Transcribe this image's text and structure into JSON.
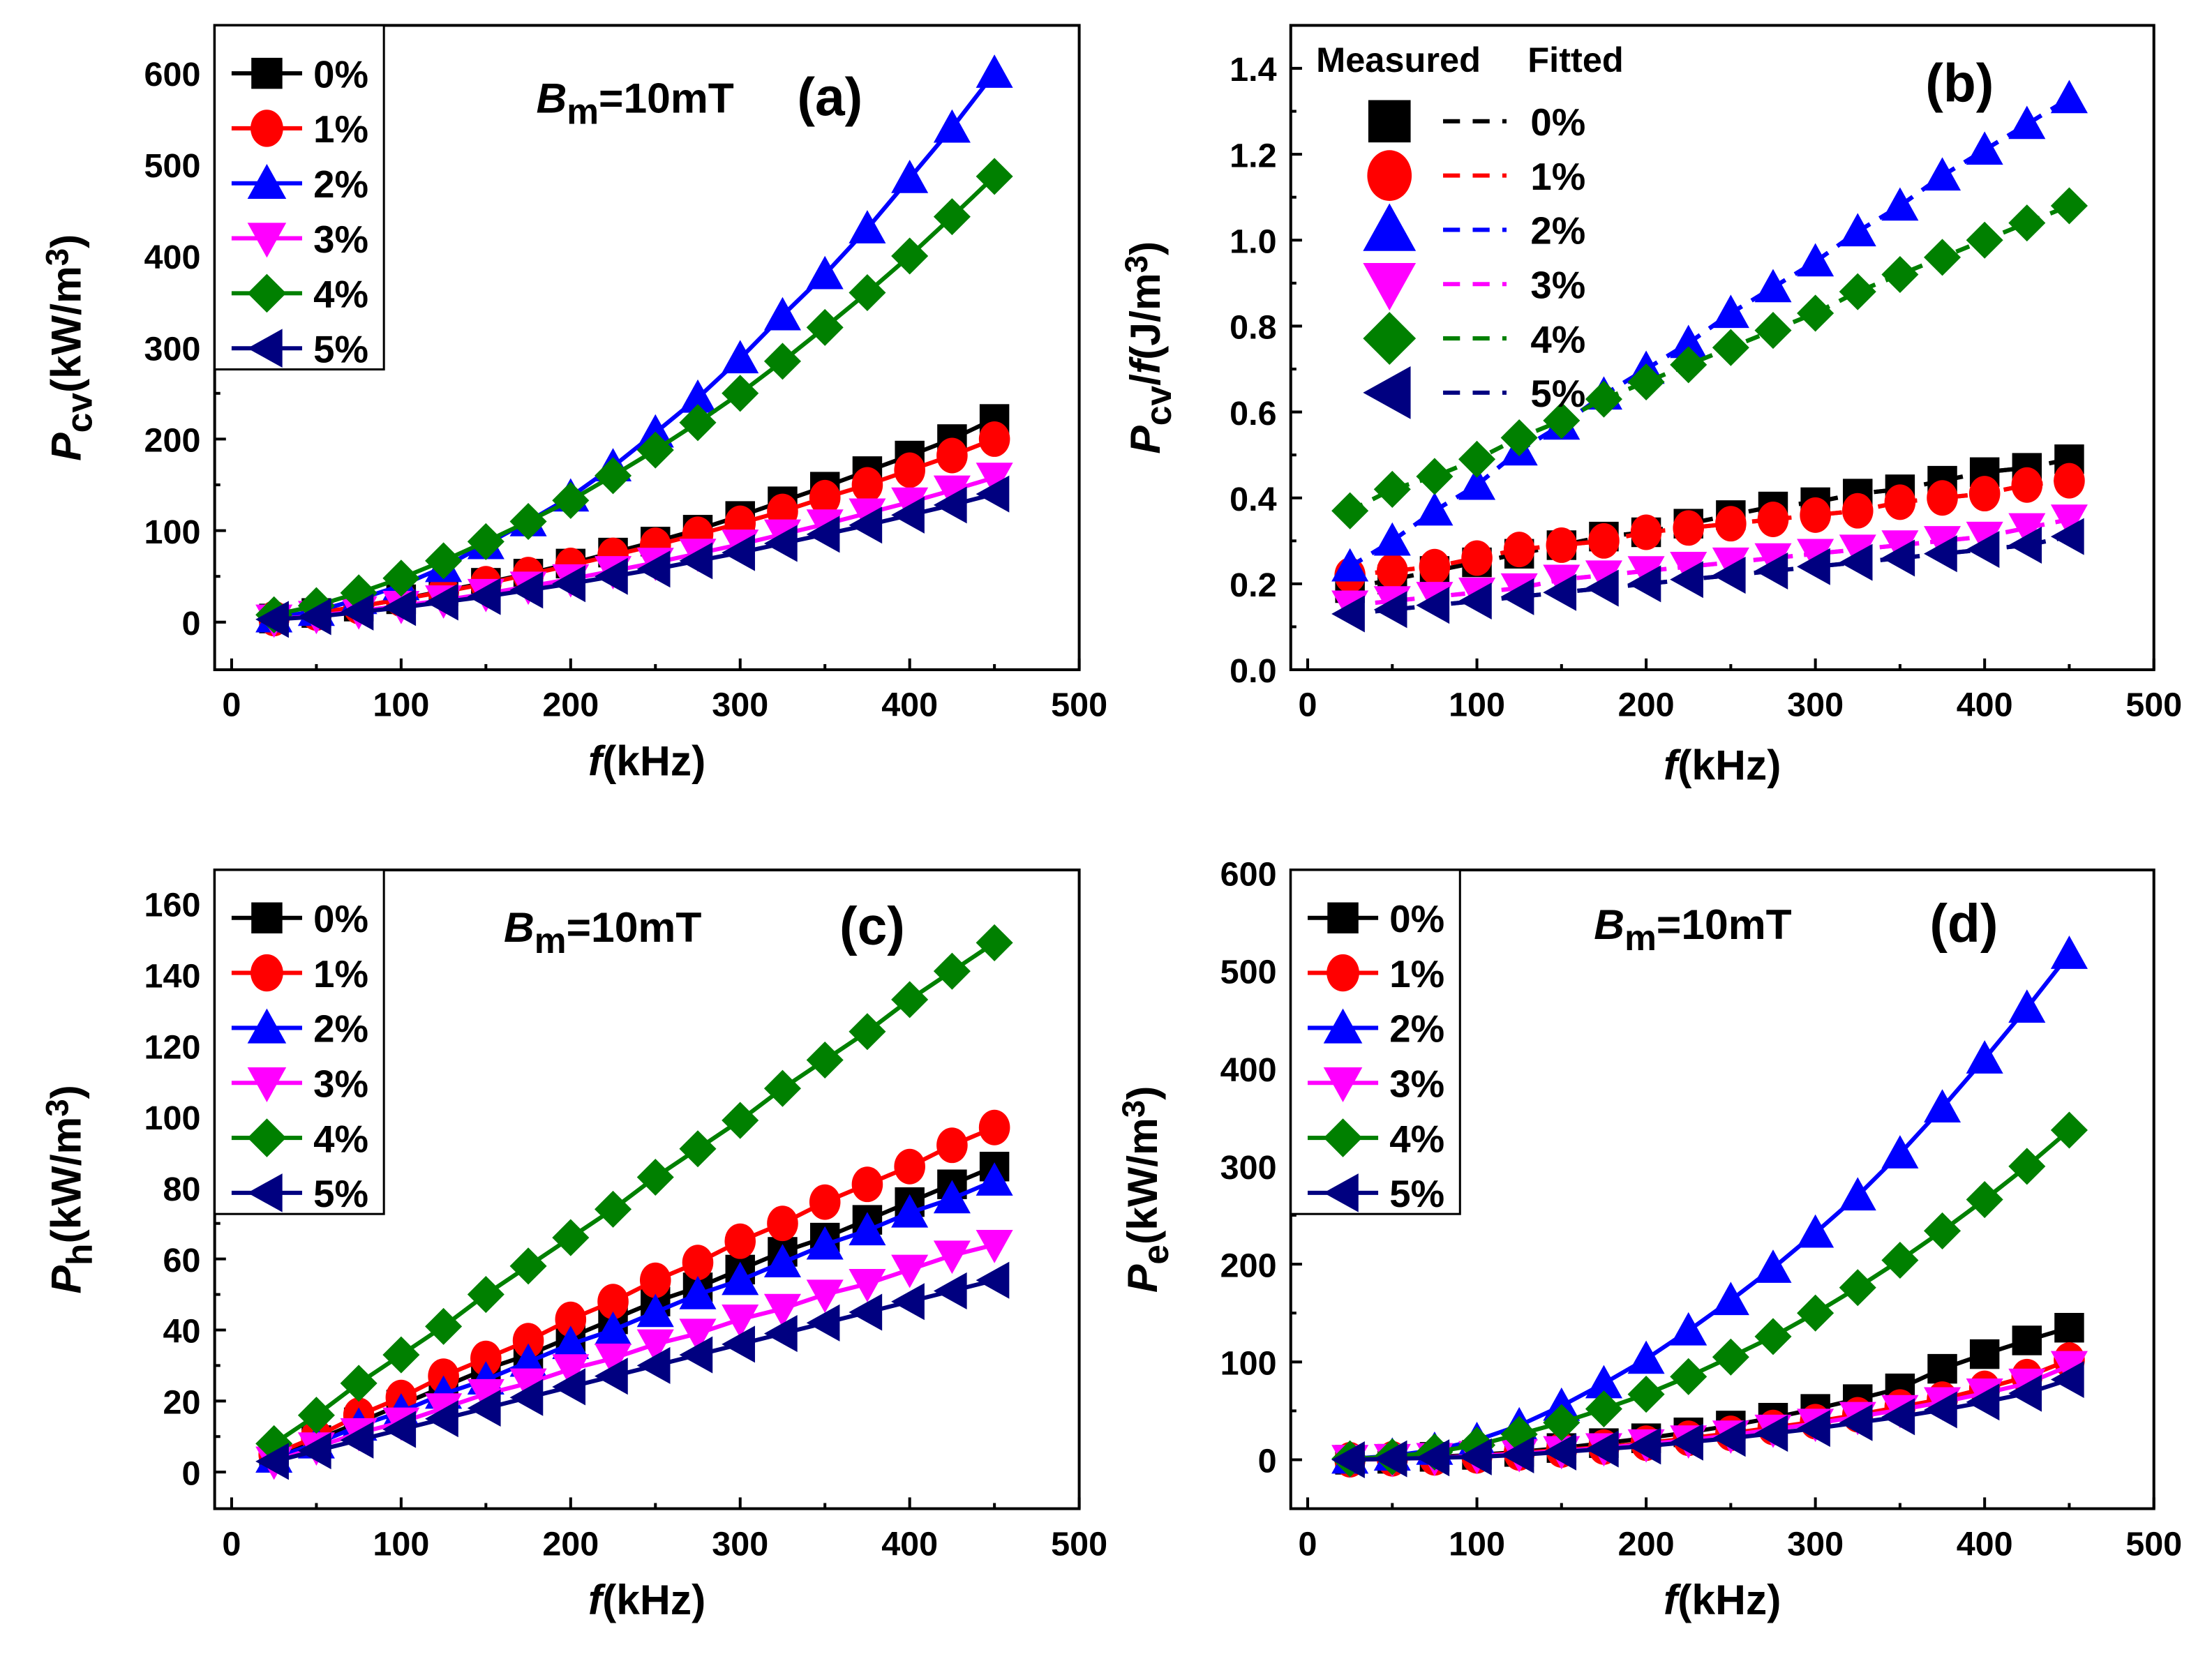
{
  "colors": {
    "0%": "#000000",
    "1%": "#ff0000",
    "2%": "#0000ff",
    "3%": "#ff00ff",
    "4%": "#008000",
    "5%": "#000080"
  },
  "chart_data": [
    {
      "id": "a",
      "type": "line",
      "panel_label": "(a)",
      "annotation": [
        {
          "t": "B",
          "s": "i"
        },
        {
          "t": "m",
          "s": "sub"
        },
        {
          "t": "=10mT",
          "s": "n"
        }
      ],
      "xlabel": [
        {
          "t": "f",
          "s": "i"
        },
        {
          "t": "(kHz)",
          "s": "n"
        }
      ],
      "ylabel": [
        {
          "t": "P",
          "s": "i"
        },
        {
          "t": "cv",
          "s": "sub"
        },
        {
          "t": "(kW/m",
          "s": "n"
        },
        {
          "t": "3",
          "s": "sup"
        },
        {
          "t": ")",
          "s": "n"
        }
      ],
      "xlim": [
        -10,
        500
      ],
      "ylim": [
        -52,
        652
      ],
      "xticks": [
        0,
        100,
        200,
        300,
        400,
        500
      ],
      "yticks": [
        0,
        100,
        200,
        300,
        400,
        500,
        600
      ],
      "ydecimals": 0,
      "legend": {
        "placement": "top-left",
        "style": "boxed"
      },
      "x": [
        25,
        50,
        75,
        100,
        125,
        150,
        175,
        200,
        225,
        250,
        275,
        300,
        325,
        350,
        375,
        400,
        425,
        450
      ],
      "series": [
        {
          "name": "0%",
          "marker": "square",
          "values": [
            4,
            10,
            17,
            25,
            34,
            43,
            53,
            64,
            76,
            88,
            101,
            116,
            132,
            148,
            165,
            182,
            200,
            222
          ]
        },
        {
          "name": "1%",
          "marker": "circle",
          "values": [
            4,
            10,
            17,
            25,
            33,
            42,
            52,
            62,
            73,
            84,
            96,
            108,
            121,
            136,
            150,
            166,
            182,
            200
          ]
        },
        {
          "name": "2%",
          "marker": "triangle-up",
          "values": [
            5,
            12,
            25,
            40,
            60,
            85,
            110,
            137,
            170,
            207,
            245,
            288,
            335,
            380,
            430,
            485,
            540,
            600
          ]
        },
        {
          "name": "3%",
          "marker": "triangle-down",
          "values": [
            3,
            7,
            12,
            18,
            24,
            31,
            39,
            47,
            56,
            65,
            75,
            85,
            96,
            107,
            119,
            131,
            144,
            158
          ]
        },
        {
          "name": "4%",
          "marker": "diamond",
          "values": [
            8,
            18,
            32,
            48,
            67,
            88,
            110,
            133,
            160,
            188,
            218,
            250,
            285,
            322,
            360,
            400,
            443,
            487
          ]
        },
        {
          "name": "5%",
          "marker": "triangle-left",
          "values": [
            3,
            6,
            11,
            16,
            22,
            28,
            35,
            42,
            50,
            58,
            67,
            76,
            86,
            96,
            106,
            117,
            128,
            140
          ]
        }
      ]
    },
    {
      "id": "b",
      "type": "scatter",
      "panel_label": "(b)",
      "annotation": [],
      "legend_headers": {
        "measured": "Measured",
        "fitted": "Fitted"
      },
      "xlabel": [
        {
          "t": "f",
          "s": "i"
        },
        {
          "t": "(kHz)",
          "s": "n"
        }
      ],
      "ylabel": [
        {
          "t": "P",
          "s": "i"
        },
        {
          "t": "cv",
          "s": "sub"
        },
        {
          "t": "/",
          "s": "n"
        },
        {
          "t": "f",
          "s": "i"
        },
        {
          "t": "(J/m",
          "s": "n"
        },
        {
          "t": "3",
          "s": "sup"
        },
        {
          "t": ")",
          "s": "n"
        }
      ],
      "xlim": [
        -10,
        500
      ],
      "ylim": [
        0,
        1.5
      ],
      "xticks": [
        0,
        100,
        200,
        300,
        400,
        500
      ],
      "yticks": [
        0,
        0.2,
        0.4,
        0.6,
        0.8,
        1.0,
        1.2,
        1.4
      ],
      "ydecimals": 1,
      "legend": {
        "placement": "top-left",
        "style": "measured-fitted"
      },
      "x": [
        25,
        50,
        75,
        100,
        125,
        150,
        175,
        200,
        225,
        250,
        275,
        300,
        325,
        350,
        375,
        400,
        425,
        450
      ],
      "series": [
        {
          "name": "0%",
          "marker": "square",
          "values": [
            0.19,
            0.21,
            0.23,
            0.25,
            0.27,
            0.29,
            0.31,
            0.32,
            0.34,
            0.36,
            0.38,
            0.39,
            0.41,
            0.42,
            0.44,
            0.46,
            0.47,
            0.49
          ]
        },
        {
          "name": "1%",
          "marker": "circle",
          "values": [
            0.22,
            0.23,
            0.24,
            0.26,
            0.28,
            0.29,
            0.3,
            0.32,
            0.33,
            0.34,
            0.35,
            0.36,
            0.37,
            0.39,
            0.4,
            0.41,
            0.43,
            0.44
          ]
        },
        {
          "name": "2%",
          "marker": "triangle-up",
          "values": [
            0.24,
            0.3,
            0.37,
            0.43,
            0.51,
            0.57,
            0.64,
            0.7,
            0.76,
            0.83,
            0.89,
            0.95,
            1.02,
            1.08,
            1.15,
            1.21,
            1.27,
            1.33
          ]
        },
        {
          "name": "3%",
          "marker": "triangle-down",
          "values": [
            0.15,
            0.16,
            0.17,
            0.18,
            0.19,
            0.21,
            0.22,
            0.23,
            0.24,
            0.25,
            0.26,
            0.27,
            0.28,
            0.29,
            0.3,
            0.31,
            0.33,
            0.35
          ]
        },
        {
          "name": "4%",
          "marker": "diamond",
          "values": [
            0.37,
            0.42,
            0.45,
            0.49,
            0.54,
            0.58,
            0.63,
            0.67,
            0.71,
            0.75,
            0.79,
            0.83,
            0.88,
            0.92,
            0.96,
            1.0,
            1.04,
            1.08
          ]
        },
        {
          "name": "5%",
          "marker": "triangle-left",
          "values": [
            0.13,
            0.14,
            0.15,
            0.16,
            0.17,
            0.18,
            0.19,
            0.2,
            0.21,
            0.22,
            0.23,
            0.24,
            0.25,
            0.26,
            0.27,
            0.28,
            0.29,
            0.31
          ]
        }
      ]
    },
    {
      "id": "c",
      "type": "line",
      "panel_label": "(c)",
      "annotation": [
        {
          "t": "B",
          "s": "i"
        },
        {
          "t": "m",
          "s": "sub"
        },
        {
          "t": "=10mT",
          "s": "n"
        }
      ],
      "xlabel": [
        {
          "t": "f",
          "s": "i"
        },
        {
          "t": "(kHz)",
          "s": "n"
        }
      ],
      "ylabel": [
        {
          "t": "P",
          "s": "i"
        },
        {
          "t": "h",
          "s": "sub"
        },
        {
          "t": "(kW/m",
          "s": "n"
        },
        {
          "t": "3",
          "s": "sup"
        },
        {
          "t": ")",
          "s": "n"
        }
      ],
      "xlim": [
        -10,
        500
      ],
      "ylim": [
        -10.3,
        169.5
      ],
      "xticks": [
        0,
        100,
        200,
        300,
        400,
        500
      ],
      "yticks": [
        0,
        20,
        40,
        60,
        80,
        100,
        120,
        140,
        160
      ],
      "ydecimals": 0,
      "legend": {
        "placement": "top-left",
        "style": "boxed"
      },
      "x": [
        25,
        50,
        75,
        100,
        125,
        150,
        175,
        200,
        225,
        250,
        275,
        300,
        325,
        350,
        375,
        400,
        425,
        450
      ],
      "series": [
        {
          "name": "0%",
          "marker": "square",
          "values": [
            4,
            9,
            14,
            19,
            24,
            29,
            33,
            38,
            43,
            48,
            52,
            57,
            62,
            66,
            71,
            76,
            81,
            86
          ]
        },
        {
          "name": "1%",
          "marker": "circle",
          "values": [
            5,
            10,
            16,
            21,
            27,
            32,
            37,
            43,
            48,
            54,
            59,
            65,
            70,
            76,
            81,
            86,
            92,
            97
          ]
        },
        {
          "name": "2%",
          "marker": "triangle-up",
          "values": [
            4,
            8,
            13,
            17,
            22,
            26,
            31,
            36,
            40,
            45,
            50,
            54,
            59,
            64,
            68,
            73,
            77,
            82
          ]
        },
        {
          "name": "3%",
          "marker": "triangle-down",
          "values": [
            3,
            7,
            11,
            14,
            18,
            22,
            25,
            29,
            32,
            36,
            39,
            43,
            46,
            50,
            53,
            57,
            61,
            64
          ]
        },
        {
          "name": "4%",
          "marker": "diamond",
          "values": [
            8,
            16,
            25,
            33,
            41,
            50,
            58,
            66,
            74,
            83,
            91,
            99,
            108,
            116,
            124,
            133,
            141,
            149
          ]
        },
        {
          "name": "5%",
          "marker": "triangle-left",
          "values": [
            3,
            6,
            9,
            12,
            15,
            18,
            21,
            24,
            27,
            30,
            33,
            36,
            39,
            42,
            45,
            48,
            51,
            54
          ]
        }
      ]
    },
    {
      "id": "d",
      "type": "line",
      "panel_label": "(d)",
      "annotation": [
        {
          "t": "B",
          "s": "i"
        },
        {
          "t": "m",
          "s": "sub"
        },
        {
          "t": "=10mT",
          "s": "n"
        }
      ],
      "xlabel": [
        {
          "t": "f",
          "s": "i"
        },
        {
          "t": "(kHz)",
          "s": "n"
        }
      ],
      "ylabel": [
        {
          "t": "P",
          "s": "i"
        },
        {
          "t": "e",
          "s": "sub"
        },
        {
          "t": "(kW/m",
          "s": "n"
        },
        {
          "t": "3",
          "s": "sup"
        },
        {
          "t": ")",
          "s": "n"
        }
      ],
      "xlim": [
        -10,
        500
      ],
      "ylim": [
        -50,
        603
      ],
      "xticks": [
        0,
        100,
        200,
        300,
        400,
        500
      ],
      "yticks": [
        0,
        100,
        200,
        300,
        400,
        500,
        600
      ],
      "ydecimals": 0,
      "legend": {
        "placement": "top-left",
        "style": "boxed"
      },
      "x": [
        25,
        50,
        75,
        100,
        125,
        150,
        175,
        200,
        225,
        250,
        275,
        300,
        325,
        350,
        375,
        400,
        425,
        450
      ],
      "series": [
        {
          "name": "0%",
          "marker": "square",
          "values": [
            0,
            1,
            3,
            5,
            8,
            12,
            17,
            22,
            28,
            35,
            43,
            52,
            62,
            73,
            93,
            108,
            122,
            135
          ]
        },
        {
          "name": "1%",
          "marker": "circle",
          "values": [
            0,
            1,
            2,
            4,
            7,
            10,
            13,
            17,
            22,
            27,
            33,
            39,
            46,
            54,
            62,
            73,
            85,
            102
          ]
        },
        {
          "name": "2%",
          "marker": "triangle-up",
          "values": [
            1,
            4,
            10,
            20,
            35,
            55,
            78,
            103,
            132,
            163,
            196,
            232,
            270,
            313,
            360,
            410,
            462,
            517
          ]
        },
        {
          "name": "3%",
          "marker": "triangle-down",
          "values": [
            0,
            1,
            2,
            4,
            6,
            9,
            12,
            16,
            20,
            25,
            31,
            37,
            44,
            51,
            59,
            68,
            78,
            96
          ]
        },
        {
          "name": "4%",
          "marker": "diamond",
          "values": [
            1,
            3,
            8,
            15,
            26,
            38,
            52,
            67,
            85,
            105,
            126,
            150,
            176,
            204,
            234,
            266,
            300,
            337
          ]
        },
        {
          "name": "5%",
          "marker": "triangle-left",
          "values": [
            0,
            1,
            2,
            3,
            5,
            8,
            11,
            14,
            18,
            22,
            27,
            32,
            38,
            44,
            51,
            59,
            68,
            82
          ]
        }
      ]
    }
  ]
}
